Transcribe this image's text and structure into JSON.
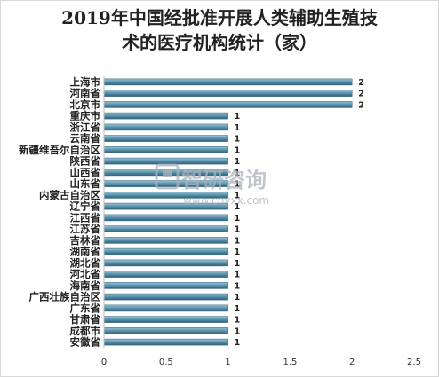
{
  "chart_data": {
    "type": "bar",
    "orientation": "horizontal",
    "title_lines": [
      "2019年中国经批准开展人类辅助生殖技",
      "术的医疗机构统计（家）"
    ],
    "categories": [
      "上海市",
      "河南省",
      "北京市",
      "重庆市",
      "浙江省",
      "云南省",
      "新疆维吾尔自治区",
      "陕西省",
      "山西省",
      "山东省",
      "内蒙古自治区",
      "辽宁省",
      "江西省",
      "江苏省",
      "吉林省",
      "湖南省",
      "湖北省",
      "河北省",
      "海南省",
      "广西壮族自治区",
      "广东省",
      "甘肃省",
      "成都市",
      "安徽省"
    ],
    "values": [
      2,
      2,
      2,
      1,
      1,
      1,
      1,
      1,
      1,
      1,
      1,
      1,
      1,
      1,
      1,
      1,
      1,
      1,
      1,
      1,
      1,
      1,
      1,
      1
    ],
    "xlim": [
      0,
      2.5
    ],
    "xticks": [
      "0",
      "0.5",
      "1",
      "1.5",
      "2",
      "2.5"
    ],
    "bar_color": "#4f8aa6",
    "grid": false,
    "legend": "none"
  },
  "watermark": {
    "brand": "智研咨询",
    "url": "www.chyxx.com"
  }
}
